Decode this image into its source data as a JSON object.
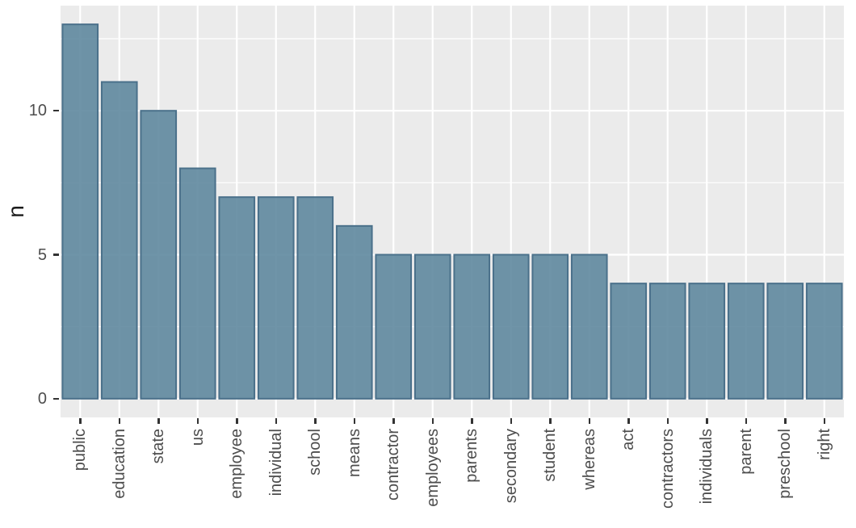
{
  "chart_data": {
    "type": "bar",
    "categories": [
      "public",
      "education",
      "state",
      "us",
      "employee",
      "individual",
      "school",
      "means",
      "contractor",
      "employees",
      "parents",
      "secondary",
      "student",
      "whereas",
      "act",
      "contractors",
      "individuals",
      "parent",
      "preschool",
      "right"
    ],
    "values": [
      13,
      11,
      10,
      8,
      7,
      7,
      7,
      6,
      5,
      5,
      5,
      5,
      5,
      5,
      4,
      4,
      4,
      4,
      4,
      4
    ],
    "title": "",
    "xlabel": "",
    "ylabel": "n",
    "ylim": [
      -0.65,
      13.65
    ],
    "yticks": [
      0,
      5,
      10
    ],
    "yticks_minor": [
      2.5,
      7.5,
      12.5
    ],
    "bar_rel_width": 0.9,
    "grid": true,
    "legend": false,
    "colors": {
      "panel_background": "#ebebeb",
      "gridline": "#ffffff",
      "bar_fill": "#5f889e",
      "bar_stroke": "#4a708a",
      "tick_mark": "#333333",
      "tick_text": "#4d4d4d",
      "axis_title_text": "#1a1a1a",
      "figure_background": "#ffffff"
    }
  }
}
